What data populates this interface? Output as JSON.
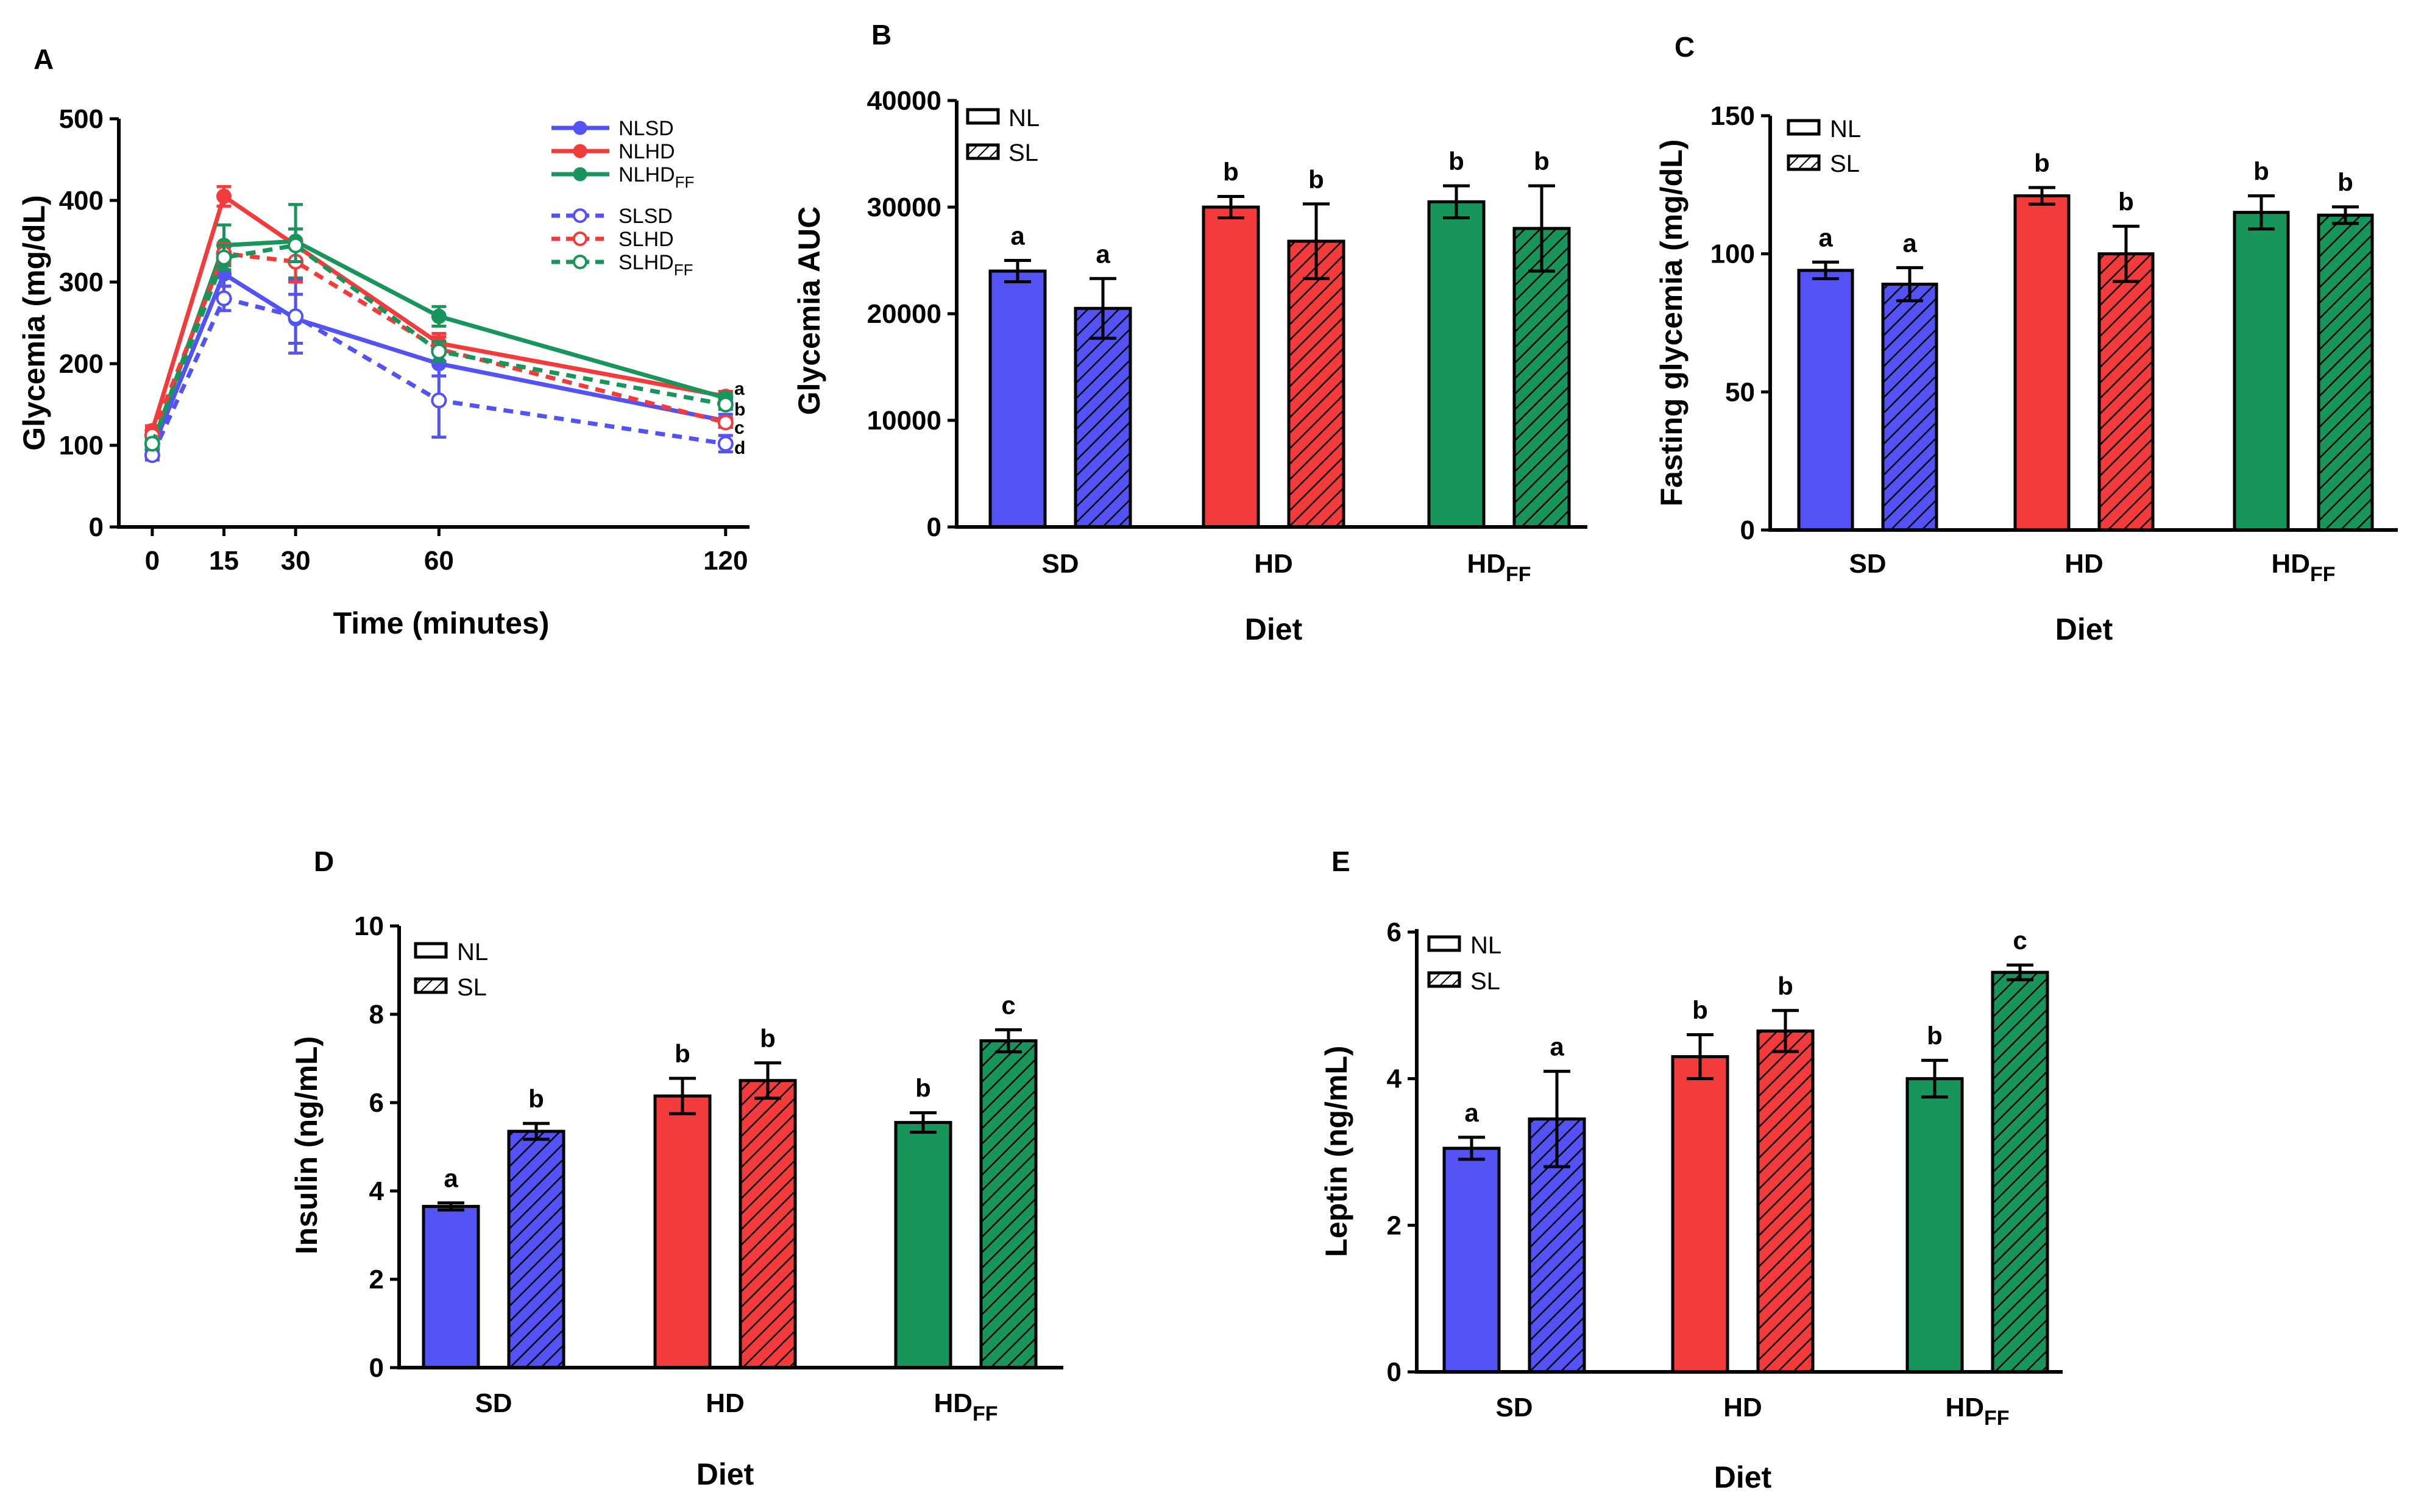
{
  "colors": {
    "SD": "#5252F5",
    "HD": "#F43B3B",
    "HDFF": "#17955A",
    "axis": "#000000",
    "bar_outline": "#000000"
  },
  "chart_data": [
    {
      "id": "A",
      "type": "line",
      "panel_label": "A",
      "xlabel": "Time (minutes)",
      "ylabel": "Glycemia (mg/dL)",
      "x": [
        0,
        15,
        30,
        60,
        120
      ],
      "xticks": [
        0,
        15,
        30,
        60,
        120
      ],
      "yticks": [
        0,
        100,
        200,
        300,
        400,
        500
      ],
      "ylim": [
        0,
        500
      ],
      "xlim": [
        -7,
        125
      ],
      "legend_position": "top-right",
      "series": [
        {
          "name": "NLSD",
          "name_main": "NLSD",
          "name_sub": "",
          "color_key": "SD",
          "dashed": false,
          "values": [
            95,
            310,
            255,
            200,
            130
          ],
          "errors": [
            8,
            15,
            30,
            15,
            8
          ],
          "end_label": "c"
        },
        {
          "name": "NLHD",
          "name_main": "NLHD",
          "name_sub": "",
          "color_key": "HD",
          "dashed": false,
          "values": [
            118,
            405,
            345,
            225,
            160
          ],
          "errors": [
            6,
            12,
            20,
            12,
            6
          ],
          "end_label": "a"
        },
        {
          "name": "NLHDFF",
          "name_main": "NLHD",
          "name_sub": "FF",
          "color_key": "HDFF",
          "dashed": false,
          "values": [
            100,
            345,
            350,
            258,
            158
          ],
          "errors": [
            6,
            25,
            45,
            12,
            6
          ],
          "end_label": ""
        },
        {
          "name": "SLSD",
          "name_main": "SLSD",
          "name_sub": "",
          "color_key": "SD",
          "dashed": true,
          "values": [
            88,
            280,
            258,
            155,
            102
          ],
          "errors": [
            6,
            15,
            45,
            45,
            10
          ],
          "end_label": "d"
        },
        {
          "name": "SLHD",
          "name_main": "SLHD",
          "name_sub": "",
          "color_key": "HD",
          "dashed": true,
          "values": [
            112,
            335,
            325,
            218,
            128
          ],
          "errors": [
            6,
            12,
            25,
            15,
            6
          ],
          "end_label": "b"
        },
        {
          "name": "SLHDFF",
          "name_main": "SLHD",
          "name_sub": "FF",
          "color_key": "HDFF",
          "dashed": true,
          "values": [
            102,
            330,
            345,
            215,
            150
          ],
          "errors": [
            6,
            15,
            20,
            12,
            6
          ],
          "end_label": ""
        }
      ]
    },
    {
      "id": "B",
      "type": "bar",
      "panel_label": "B",
      "xlabel": "Diet",
      "ylabel": "Glycemia AUC",
      "ylim": [
        0,
        40000
      ],
      "yticks": [
        0,
        10000,
        20000,
        30000,
        40000
      ],
      "legend": [
        "NL",
        "SL"
      ],
      "legend_position": "top-left",
      "categories": [
        {
          "label": "SD",
          "sub": "",
          "color_key": "SD"
        },
        {
          "label": "HD",
          "sub": "",
          "color_key": "HD"
        },
        {
          "label": "HD",
          "sub": "FF",
          "color_key": "HDFF"
        }
      ],
      "series": [
        {
          "name": "NL",
          "hatched": false,
          "values": [
            24000,
            30000,
            30500
          ],
          "errors": [
            1000,
            1000,
            1500
          ],
          "letters": [
            "a",
            "b",
            "b"
          ]
        },
        {
          "name": "SL",
          "hatched": true,
          "values": [
            20500,
            26800,
            28000
          ],
          "errors": [
            2800,
            3500,
            4000
          ],
          "letters": [
            "a",
            "b",
            "b"
          ]
        }
      ]
    },
    {
      "id": "C",
      "type": "bar",
      "panel_label": "C",
      "xlabel": "Diet",
      "ylabel": "Fasting glycemia (mg/dL)",
      "ylim": [
        0,
        150
      ],
      "yticks": [
        0,
        50,
        100,
        150
      ],
      "legend": [
        "NL",
        "SL"
      ],
      "legend_position": "top-left",
      "categories": [
        {
          "label": "SD",
          "sub": "",
          "color_key": "SD"
        },
        {
          "label": "HD",
          "sub": "",
          "color_key": "HD"
        },
        {
          "label": "HD",
          "sub": "FF",
          "color_key": "HDFF"
        }
      ],
      "series": [
        {
          "name": "NL",
          "hatched": false,
          "values": [
            94,
            121,
            115
          ],
          "errors": [
            3,
            3,
            6
          ],
          "letters": [
            "a",
            "b",
            "b"
          ]
        },
        {
          "name": "SL",
          "hatched": true,
          "values": [
            89,
            100,
            114
          ],
          "errors": [
            6,
            10,
            3
          ],
          "letters": [
            "a",
            "b",
            "b"
          ]
        }
      ]
    },
    {
      "id": "D",
      "type": "bar",
      "panel_label": "D",
      "xlabel": "Diet",
      "ylabel": "Insulin (ng/mL)",
      "ylim": [
        0,
        10
      ],
      "yticks": [
        0,
        2,
        4,
        6,
        8,
        10
      ],
      "legend": [
        "NL",
        "SL"
      ],
      "legend_position": "top-left",
      "categories": [
        {
          "label": "SD",
          "sub": "",
          "color_key": "SD"
        },
        {
          "label": "HD",
          "sub": "",
          "color_key": "HD"
        },
        {
          "label": "HD",
          "sub": "FF",
          "color_key": "HDFF"
        }
      ],
      "series": [
        {
          "name": "NL",
          "hatched": false,
          "values": [
            3.65,
            6.15,
            5.55
          ],
          "errors": [
            0.08,
            0.4,
            0.22
          ],
          "letters": [
            "a",
            "b",
            "b"
          ]
        },
        {
          "name": "SL",
          "hatched": true,
          "values": [
            5.35,
            6.5,
            7.4
          ],
          "errors": [
            0.18,
            0.4,
            0.25
          ],
          "letters": [
            "b",
            "b",
            "c"
          ]
        }
      ]
    },
    {
      "id": "E",
      "type": "bar",
      "panel_label": "E",
      "xlabel": "Diet",
      "ylabel": "Leptin (ng/mL)",
      "ylim": [
        0,
        6
      ],
      "yticks": [
        0,
        2,
        4,
        6
      ],
      "legend": [
        "NL",
        "SL"
      ],
      "legend_position": "top-left",
      "categories": [
        {
          "label": "SD",
          "sub": "",
          "color_key": "SD"
        },
        {
          "label": "HD",
          "sub": "",
          "color_key": "HD"
        },
        {
          "label": "HD",
          "sub": "FF",
          "color_key": "HDFF"
        }
      ],
      "series": [
        {
          "name": "NL",
          "hatched": false,
          "values": [
            3.05,
            4.3,
            4.0
          ],
          "errors": [
            0.15,
            0.3,
            0.25
          ],
          "letters": [
            "a",
            "b",
            "b"
          ]
        },
        {
          "name": "SL",
          "hatched": true,
          "values": [
            3.45,
            4.65,
            5.45
          ],
          "errors": [
            0.65,
            0.28,
            0.1
          ],
          "letters": [
            "a",
            "b",
            "c"
          ]
        }
      ]
    }
  ]
}
